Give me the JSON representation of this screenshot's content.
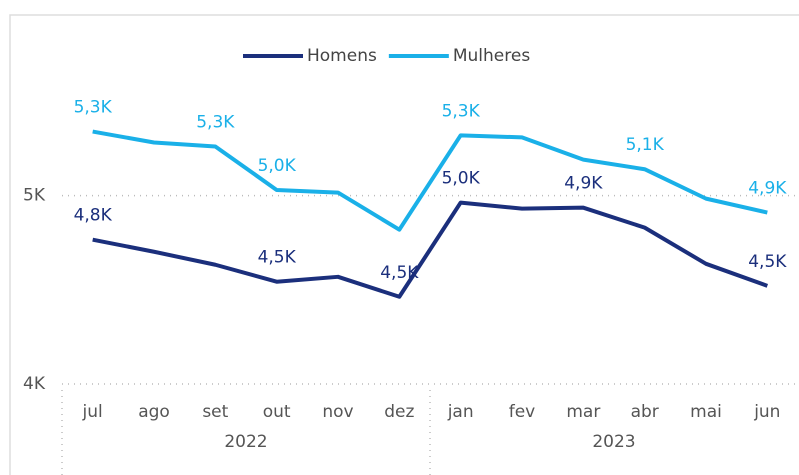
{
  "chart_data": {
    "type": "line",
    "categories": [
      "jul",
      "ago",
      "set",
      "out",
      "nov",
      "dez",
      "jan",
      "fev",
      "mar",
      "abr",
      "mai",
      "jun"
    ],
    "years": [
      "2022",
      "2023"
    ],
    "series": [
      {
        "name": "Homens",
        "color": "#1b2f7c",
        "values": [
          4766,
          4702,
          4633,
          4543,
          4569,
          4463,
          4963,
          4931,
          4936,
          4830,
          4638,
          4521
        ],
        "value_labels": [
          "4,8K",
          null,
          null,
          "4,5K",
          null,
          "4,5K",
          "5,0K",
          null,
          "4,9K",
          null,
          null,
          "4,5K"
        ]
      },
      {
        "name": "Mulheres",
        "color": "#1ab0e8",
        "values": [
          5340,
          5282,
          5261,
          5030,
          5016,
          4819,
          5320,
          5309,
          5191,
          5140,
          4984,
          4910
        ],
        "value_labels": [
          "5,3K",
          null,
          "5,3K",
          "5,0K",
          null,
          null,
          "5,3K",
          null,
          null,
          "5,1K",
          null,
          "4,9K"
        ]
      }
    ],
    "ylim": [
      4000,
      5550
    ],
    "yticks": [
      {
        "value": 4000,
        "label": "4K"
      },
      {
        "value": 5000,
        "label": "5K"
      }
    ],
    "grid": true,
    "legend": "top"
  }
}
